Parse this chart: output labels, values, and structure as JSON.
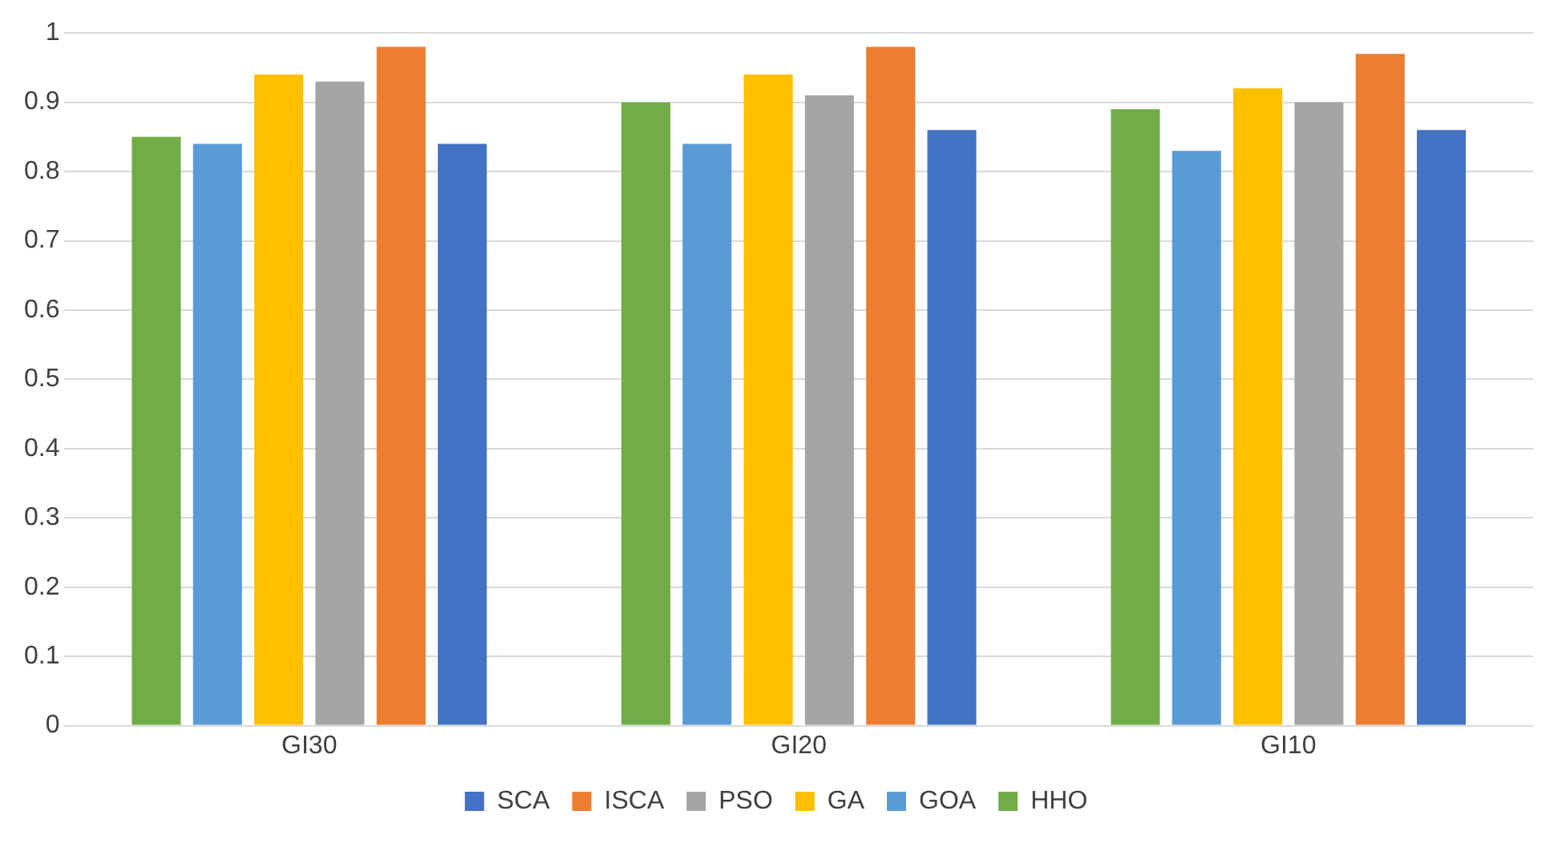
{
  "chart_data": {
    "type": "bar",
    "categories": [
      "GI30",
      "GI20",
      "GI10"
    ],
    "series": [
      {
        "name": "HHO",
        "color": "#70ad47",
        "values": [
          0.85,
          0.9,
          0.89
        ]
      },
      {
        "name": "GOA",
        "color": "#5b9bd5",
        "values": [
          0.84,
          0.84,
          0.83
        ]
      },
      {
        "name": "GA",
        "color": "#ffc000",
        "values": [
          0.94,
          0.94,
          0.92
        ]
      },
      {
        "name": "PSO",
        "color": "#a5a5a5",
        "values": [
          0.93,
          0.91,
          0.9
        ]
      },
      {
        "name": "ISCA",
        "color": "#ed7d31",
        "values": [
          0.98,
          0.98,
          0.97
        ]
      },
      {
        "name": "SCA",
        "color": "#4472c4",
        "values": [
          0.84,
          0.86,
          0.86
        ]
      }
    ],
    "ylim": [
      0,
      1
    ],
    "yticks": [
      0,
      0.1,
      0.2,
      0.3,
      0.4,
      0.5,
      0.6,
      0.7,
      0.8,
      0.9,
      1
    ],
    "grid": "y",
    "legend": "bottom"
  }
}
